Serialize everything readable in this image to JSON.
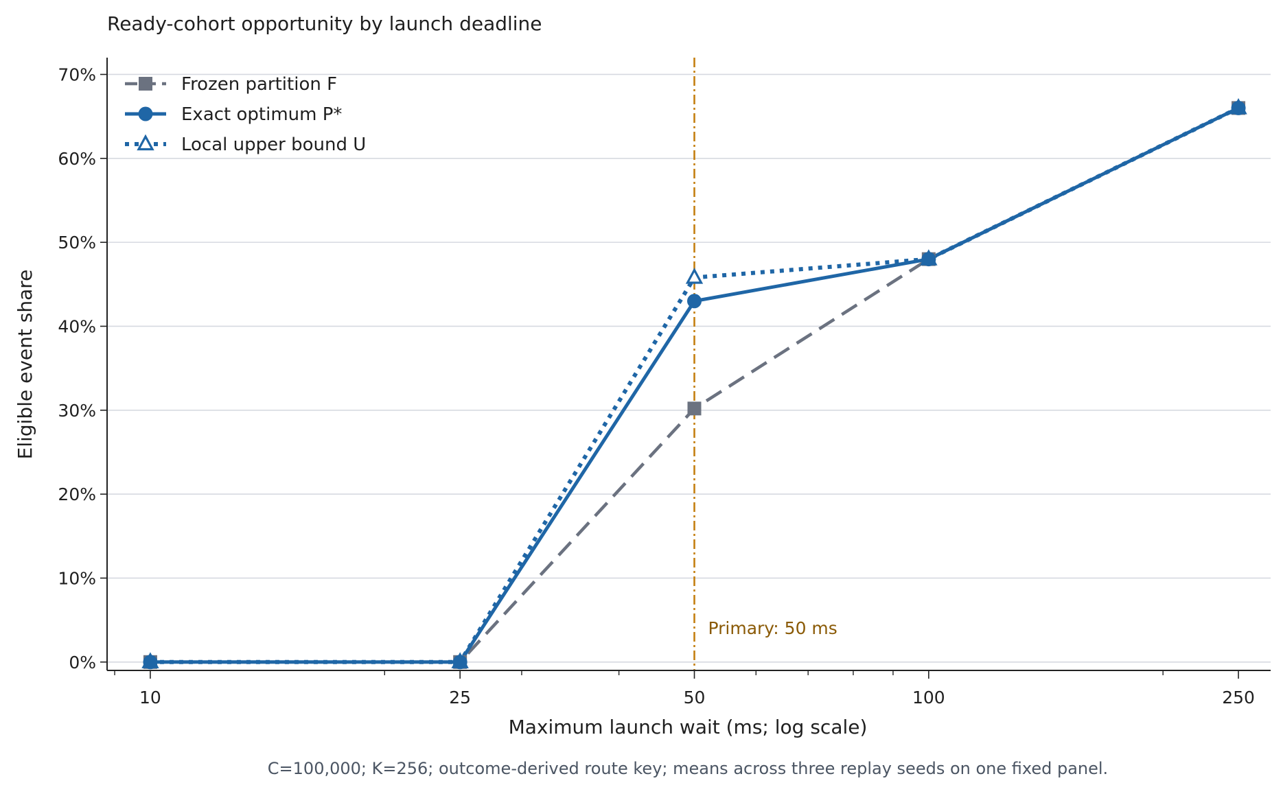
{
  "chart_data": {
    "type": "line",
    "title": "Ready-cohort opportunity by launch deadline",
    "xlabel": "Maximum launch wait (ms; log scale)",
    "ylabel": "Eligible event share",
    "x_scale": "log",
    "x": [
      10,
      25,
      50,
      100,
      250
    ],
    "x_tick_labels": [
      "10",
      "25",
      "50",
      "100",
      "250"
    ],
    "xlim": [
      8.8,
      275
    ],
    "ylim": [
      -0.01,
      0.72
    ],
    "y_ticks": [
      0,
      0.1,
      0.2,
      0.3,
      0.4,
      0.5,
      0.6,
      0.7
    ],
    "y_tick_labels": [
      "0%",
      "10%",
      "20%",
      "30%",
      "40%",
      "50%",
      "60%",
      "70%"
    ],
    "grid": "horizontal",
    "legend_position": "top-left",
    "series": [
      {
        "name": "Frozen partition F",
        "values": [
          0,
          0,
          0.302,
          0.48,
          0.66
        ],
        "color": "#6b7280",
        "style": "dashed",
        "marker": "square"
      },
      {
        "name": "Exact optimum P*",
        "values": [
          0,
          0,
          0.43,
          0.48,
          0.66
        ],
        "color": "#1f66a6",
        "style": "solid",
        "marker": "circle"
      },
      {
        "name": "Local upper bound U",
        "values": [
          0,
          0,
          0.458,
          0.48,
          0.66
        ],
        "color": "#1f66a6",
        "style": "dotted",
        "marker": "triangle-open"
      }
    ],
    "reference_line": {
      "x": 50,
      "label": "Primary: 50 ms",
      "color": "#c47f10",
      "label_color": "#8a5a06"
    },
    "footnote": "C=100,000; K=256; outcome-derived route key; means across three replay seeds on one fixed panel."
  }
}
